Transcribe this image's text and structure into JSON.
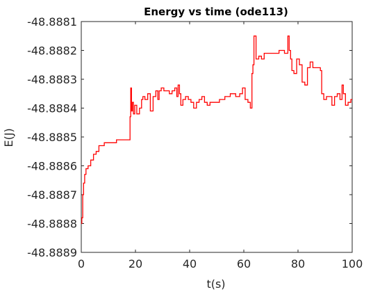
{
  "chart_data": {
    "type": "line",
    "title": "Energy vs time (ode113)",
    "xlabel": "t(s)",
    "ylabel": "E(J)",
    "xlim": [
      0,
      100
    ],
    "ylim": [
      -48.8889,
      -48.8881
    ],
    "xticks": [
      0,
      20,
      40,
      60,
      80,
      100
    ],
    "xtick_labels": [
      "0",
      "20",
      "40",
      "60",
      "80",
      "100"
    ],
    "yticks": [
      -48.8889,
      -48.8888,
      -48.8887,
      -48.8886,
      -48.8885,
      -48.8884,
      -48.8883,
      -48.8882,
      -48.8881
    ],
    "ytick_labels": [
      "-48.8889",
      "-48.8888",
      "-48.8887",
      "-48.8886",
      "-48.8885",
      "-48.8884",
      "-48.8883",
      "-48.8882",
      "-48.8881"
    ],
    "grid": false,
    "series": [
      {
        "color": "#ff0000",
        "x": [
          0,
          0.4,
          0.7,
          1.0,
          1.5,
          2,
          3,
          4,
          5,
          6,
          7,
          8,
          9,
          10,
          12,
          14,
          16,
          17,
          17.5,
          17.9,
          18.1,
          18.4,
          18.7,
          19,
          19.5,
          20,
          21,
          22,
          22.5,
          23,
          24,
          25,
          26,
          27,
          28,
          28.5,
          29,
          30,
          31,
          32,
          33,
          34,
          35,
          35.5,
          36,
          36.5,
          37,
          38,
          39,
          40,
          41,
          42,
          43,
          44,
          45,
          46,
          47,
          48,
          50,
          52,
          54,
          56,
          58,
          59,
          60,
          61,
          62,
          62.8,
          63.2,
          63.5,
          64,
          65,
          66,
          67,
          68,
          70,
          72,
          74,
          76,
          76.5,
          77,
          77.5,
          78,
          79,
          80,
          81,
          82,
          83,
          84,
          85,
          86,
          87,
          88,
          88.5,
          89,
          90,
          91,
          92,
          93,
          94,
          95,
          96,
          96.5,
          97,
          98,
          99,
          100
        ],
        "y": [
          -48.8888,
          -48.88878,
          -48.8887,
          -48.88866,
          -48.88863,
          -48.88861,
          -48.8886,
          -48.88858,
          -48.88856,
          -48.88855,
          -48.88853,
          -48.88853,
          -48.88852,
          -48.88852,
          -48.88852,
          -48.88851,
          -48.88851,
          -48.88851,
          -48.88851,
          -48.88851,
          -48.88843,
          -48.88833,
          -48.88841,
          -48.88838,
          -48.88842,
          -48.88839,
          -48.88842,
          -48.8884,
          -48.88837,
          -48.88836,
          -48.88837,
          -48.88835,
          -48.88841,
          -48.88836,
          -48.88834,
          -48.88837,
          -48.88834,
          -48.88833,
          -48.88834,
          -48.88834,
          -48.88835,
          -48.88834,
          -48.88833,
          -48.88836,
          -48.88832,
          -48.88835,
          -48.88839,
          -48.88837,
          -48.88836,
          -48.88837,
          -48.88838,
          -48.8884,
          -48.88838,
          -48.88837,
          -48.88836,
          -48.88838,
          -48.88839,
          -48.88838,
          -48.88838,
          -48.88837,
          -48.88836,
          -48.88835,
          -48.88836,
          -48.88835,
          -48.88833,
          -48.88837,
          -48.88838,
          -48.8884,
          -48.88828,
          -48.88825,
          -48.88815,
          -48.88823,
          -48.88822,
          -48.88823,
          -48.88821,
          -48.88821,
          -48.88821,
          -48.8882,
          -48.88821,
          -48.88815,
          -48.8882,
          -48.88823,
          -48.88827,
          -48.88828,
          -48.88823,
          -48.88825,
          -48.88831,
          -48.88832,
          -48.88826,
          -48.88824,
          -48.88826,
          -48.88826,
          -48.88826,
          -48.88827,
          -48.88835,
          -48.88837,
          -48.88836,
          -48.88836,
          -48.88839,
          -48.88836,
          -48.88835,
          -48.88837,
          -48.88832,
          -48.88835,
          -48.88839,
          -48.88838,
          -48.88837
        ]
      }
    ]
  }
}
